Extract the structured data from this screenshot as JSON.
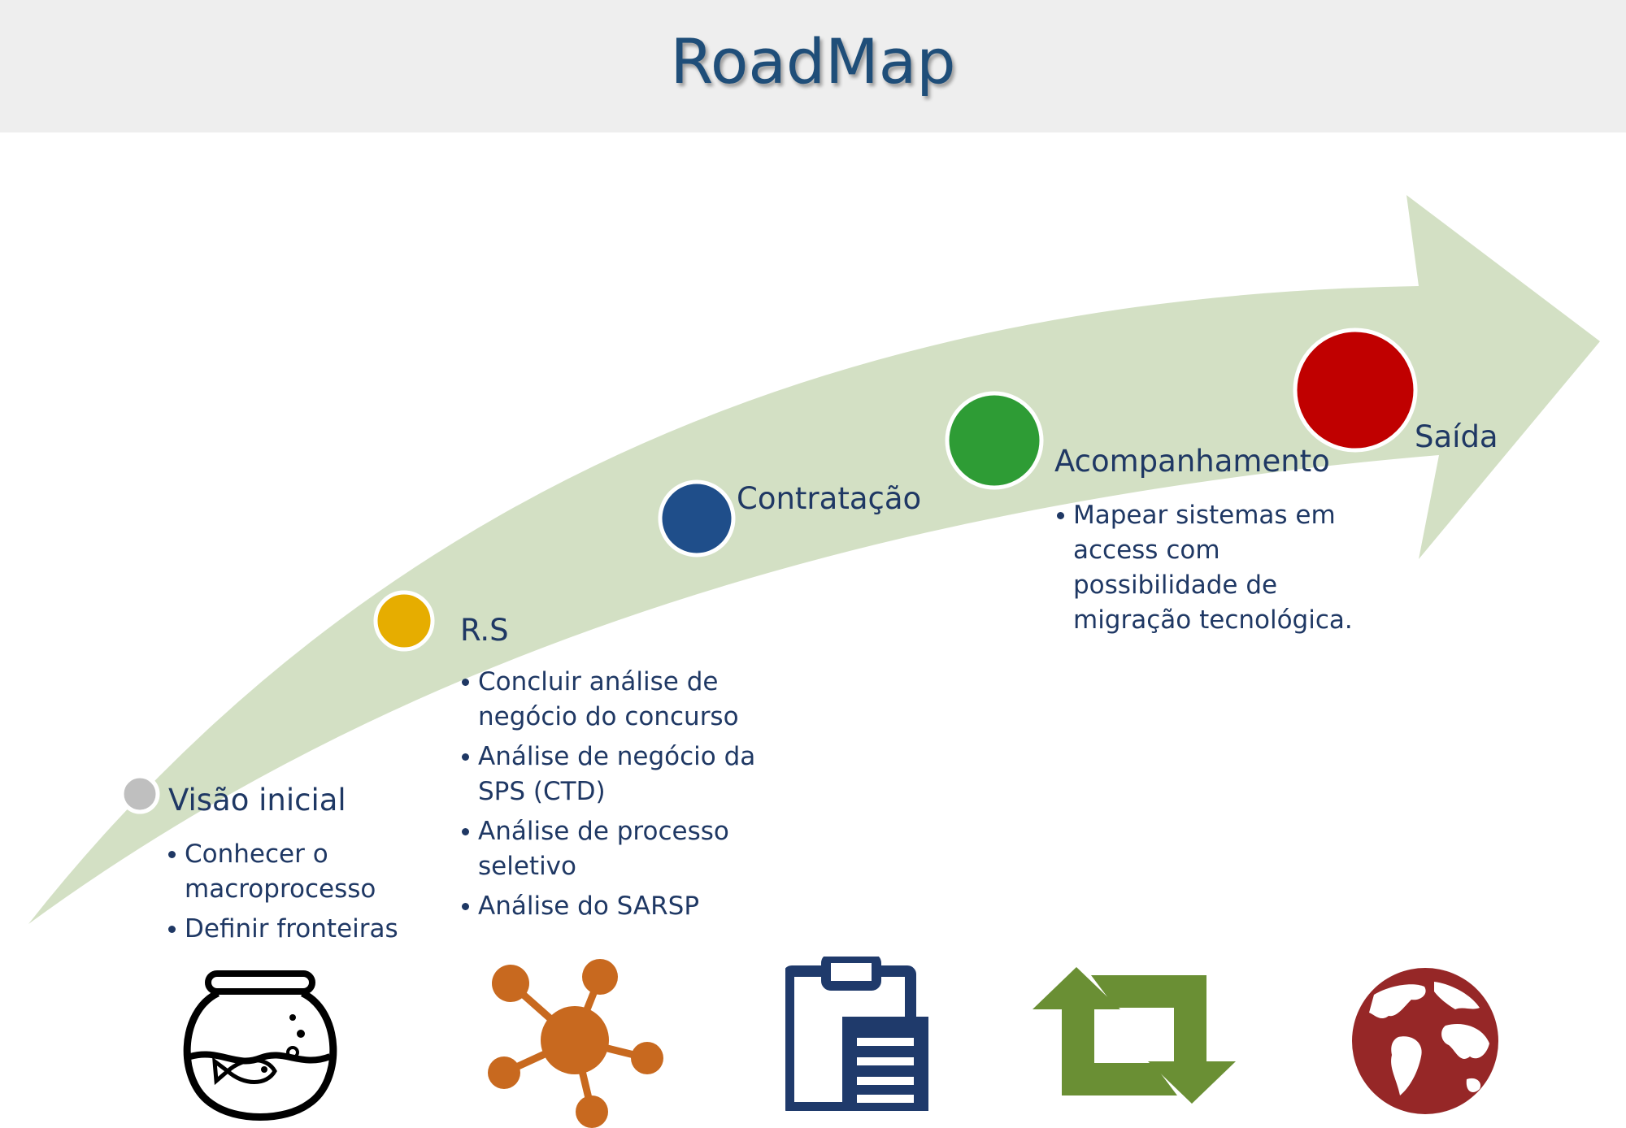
{
  "title": "RoadMap",
  "milestones": [
    {
      "label": "Visão inicial",
      "color": "#bfbfbf",
      "bullets": [
        "Conhecer o macroprocesso",
        "Definir fronteiras"
      ]
    },
    {
      "label": "R.S",
      "color": "#e6ad00",
      "bullets": [
        "Concluir análise de negócio do concurso",
        "Análise de negócio da SPS (CTD)",
        "Análise de processo seletivo",
        "Análise do SARSP"
      ]
    },
    {
      "label": "Contratação",
      "color": "#1f4e8a",
      "bullets": []
    },
    {
      "label": "Acompanhamento",
      "color": "#2e9c35",
      "bullets": [
        "Mapear sistemas em access com possibilidade de migração tecnológica."
      ]
    },
    {
      "label": "Saída",
      "color": "#c00000",
      "bullets": []
    }
  ],
  "icons": [
    {
      "name": "fishbowl-icon",
      "color": "#000000"
    },
    {
      "name": "network-icon",
      "color": "#c8691f"
    },
    {
      "name": "clipboard-icon",
      "color": "#1f3a6b"
    },
    {
      "name": "retweet-icon",
      "color": "#6a8f34"
    },
    {
      "name": "globe-icon",
      "color": "#962727"
    }
  ],
  "colors": {
    "arrow": "#d3e0c4",
    "title": "#1f4e79",
    "text": "#1f3864",
    "title_bar": "#eeeeee"
  }
}
